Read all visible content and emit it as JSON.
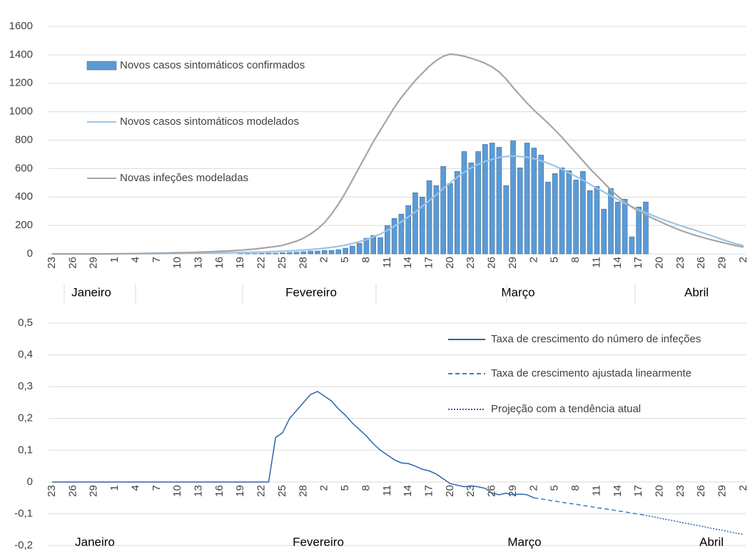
{
  "chart_data": [
    {
      "type": "combo",
      "categories": [
        "23",
        null,
        null,
        "26",
        null,
        null,
        "29",
        null,
        null,
        "1",
        null,
        null,
        "4",
        null,
        null,
        "7",
        null,
        null,
        "10",
        null,
        null,
        "13",
        null,
        null,
        "16",
        null,
        null,
        "19",
        null,
        null,
        "22",
        null,
        null,
        "25",
        null,
        null,
        "28",
        null,
        null,
        "2",
        null,
        null,
        "5",
        null,
        null,
        "8",
        null,
        null,
        "11",
        null,
        null,
        "14",
        null,
        null,
        "17",
        null,
        null,
        "20",
        null,
        null,
        "23",
        null,
        null,
        "26",
        null,
        null,
        "29",
        null,
        null,
        "2",
        null,
        null,
        "5",
        null,
        null,
        "8",
        null,
        null,
        "11",
        null,
        null,
        "14",
        null,
        null,
        "17",
        null,
        null,
        "20",
        null,
        null,
        "23",
        null,
        null,
        "26",
        null,
        null,
        "29",
        null,
        null,
        "2"
      ],
      "month_labels": [
        "Janeiro",
        "Fevereiro",
        "Março",
        "Abril"
      ],
      "ylim": [
        0,
        1600
      ],
      "yticks": [
        0,
        200,
        400,
        600,
        800,
        1000,
        1200,
        1400,
        1600
      ],
      "grid": true,
      "legend": "top-left",
      "series": [
        {
          "name": "Novos casos sintomáticos confirmados",
          "type": "bar",
          "color": "#5b9bd5",
          "values": [
            null,
            null,
            null,
            null,
            null,
            null,
            null,
            null,
            null,
            null,
            null,
            null,
            null,
            null,
            null,
            null,
            null,
            null,
            null,
            null,
            null,
            null,
            null,
            null,
            null,
            null,
            null,
            1,
            2,
            2,
            3,
            5,
            5,
            8,
            10,
            12,
            15,
            20,
            20,
            25,
            25,
            30,
            40,
            55,
            75,
            110,
            130,
            115,
            200,
            250,
            280,
            340,
            430,
            400,
            515,
            480,
            615,
            495,
            580,
            720,
            640,
            720,
            770,
            780,
            750,
            480,
            795,
            605,
            780,
            745,
            695,
            505,
            565,
            605,
            585,
            520,
            580,
            445,
            475,
            315,
            460,
            365,
            385,
            120,
            330,
            365,
            null,
            null,
            null,
            null,
            null,
            null,
            null,
            null,
            null,
            null,
            null,
            null,
            null,
            null
          ]
        },
        {
          "name": "Novos casos sintomáticos modelados",
          "type": "line",
          "color": "#9dc3e6",
          "values": [
            0,
            0,
            0,
            0,
            0,
            0,
            0,
            0,
            0,
            0,
            1,
            1,
            1,
            2,
            2,
            2,
            3,
            3,
            3,
            4,
            4,
            5,
            5,
            6,
            7,
            8,
            9,
            10,
            11,
            12,
            13,
            15,
            17,
            19,
            21,
            24,
            27,
            31,
            35,
            40,
            46,
            53,
            62,
            73,
            86,
            100,
            120,
            140,
            165,
            195,
            225,
            260,
            295,
            335,
            375,
            415,
            460,
            500,
            540,
            575,
            605,
            630,
            650,
            665,
            678,
            685,
            688,
            685,
            680,
            670,
            655,
            638,
            618,
            595,
            570,
            545,
            518,
            490,
            462,
            435,
            408,
            382,
            356,
            332,
            310,
            290,
            270,
            250,
            232,
            215,
            198,
            182,
            168,
            150,
            135,
            118,
            100,
            85,
            70,
            58
          ]
        },
        {
          "name": "Novas infeções modeladas",
          "type": "line",
          "color": "#a5a5a5",
          "values": [
            0,
            0,
            0,
            0,
            0,
            0,
            0,
            0,
            0,
            1,
            1,
            2,
            2,
            3,
            4,
            5,
            6,
            7,
            8,
            9,
            10,
            12,
            14,
            16,
            18,
            20,
            23,
            26,
            30,
            34,
            40,
            46,
            52,
            60,
            75,
            90,
            110,
            140,
            175,
            220,
            280,
            350,
            430,
            520,
            610,
            700,
            790,
            870,
            950,
            1030,
            1100,
            1160,
            1220,
            1270,
            1320,
            1360,
            1390,
            1405,
            1400,
            1390,
            1375,
            1360,
            1340,
            1315,
            1280,
            1230,
            1170,
            1115,
            1060,
            1010,
            965,
            920,
            870,
            820,
            765,
            710,
            655,
            600,
            550,
            500,
            450,
            405,
            365,
            330,
            300,
            275,
            250,
            228,
            205,
            185,
            165,
            148,
            132,
            118,
            104,
            92,
            80,
            68,
            57,
            48
          ]
        }
      ]
    },
    {
      "type": "line",
      "categories": [
        "23",
        null,
        null,
        "26",
        null,
        null,
        "29",
        null,
        null,
        "1",
        null,
        null,
        "4",
        null,
        null,
        "7",
        null,
        null,
        "10",
        null,
        null,
        "13",
        null,
        null,
        "16",
        null,
        null,
        "19",
        null,
        null,
        "22",
        null,
        null,
        "25",
        null,
        null,
        "28",
        null,
        null,
        "2",
        null,
        null,
        "5",
        null,
        null,
        "8",
        null,
        null,
        "11",
        null,
        null,
        "14",
        null,
        null,
        "17",
        null,
        null,
        "20",
        null,
        null,
        "23",
        null,
        null,
        "26",
        null,
        null,
        "29",
        null,
        null,
        "2",
        null,
        null,
        "5",
        null,
        null,
        "8",
        null,
        null,
        "11",
        null,
        null,
        "14",
        null,
        null,
        "17",
        null,
        null,
        "20",
        null,
        null,
        "23",
        null,
        null,
        "26",
        null,
        null,
        "29",
        null,
        null,
        "2"
      ],
      "month_labels": [
        "Janeiro",
        "Fevereiro",
        "Março",
        "Abril"
      ],
      "ylim": [
        -0.2,
        0.5
      ],
      "yticks": [
        {
          "value": -0.2,
          "label": "-0,2"
        },
        {
          "value": -0.1,
          "label": "-0,1"
        },
        0,
        {
          "value": 0.1,
          "label": "0,1"
        },
        {
          "value": 0.2,
          "label": "0,2"
        },
        {
          "value": 0.3,
          "label": "0,3"
        },
        {
          "value": 0.4,
          "label": "0,4"
        },
        {
          "value": 0.5,
          "label": "0,5"
        }
      ],
      "grid": true,
      "legend": "top-right",
      "series": [
        {
          "name": "Taxa de crescimento do número de infeções",
          "style": "solid",
          "color": "#2f64a8",
          "values": [
            0,
            0,
            0,
            0,
            0,
            0,
            0,
            0,
            0,
            0,
            0,
            0,
            0,
            0,
            0,
            0,
            0,
            0,
            0,
            0,
            0,
            0,
            0,
            0,
            0,
            0,
            0,
            0,
            0,
            0,
            0,
            0,
            0.14,
            0.155,
            0.2,
            0.225,
            0.25,
            0.275,
            0.285,
            0.27,
            0.255,
            0.23,
            0.21,
            0.185,
            0.165,
            0.145,
            0.12,
            0.1,
            0.085,
            0.07,
            0.06,
            0.058,
            0.05,
            0.04,
            0.035,
            0.025,
            0.01,
            -0.005,
            -0.01,
            -0.015,
            -0.012,
            -0.015,
            -0.02,
            -0.035,
            -0.04,
            -0.035,
            -0.04,
            -0.038,
            -0.04,
            -0.05,
            null,
            null,
            null,
            null,
            null,
            null,
            null,
            null,
            null,
            null,
            null,
            null,
            null,
            null,
            null,
            null,
            null,
            null,
            null,
            null,
            null,
            null,
            null,
            null,
            null,
            null,
            null,
            null,
            null,
            null
          ]
        },
        {
          "name": "Taxa de crescimento ajustada linearmente",
          "style": "dashed",
          "color": "#3a7dc9",
          "values": [
            null,
            null,
            null,
            null,
            null,
            null,
            null,
            null,
            null,
            null,
            null,
            null,
            null,
            null,
            null,
            null,
            null,
            null,
            null,
            null,
            null,
            null,
            null,
            null,
            null,
            null,
            null,
            null,
            null,
            null,
            null,
            null,
            null,
            null,
            null,
            null,
            null,
            null,
            null,
            null,
            null,
            null,
            null,
            null,
            null,
            null,
            null,
            null,
            null,
            null,
            null,
            null,
            null,
            null,
            null,
            null,
            null,
            null,
            null,
            null,
            null,
            null,
            null,
            null,
            null,
            null,
            null,
            null,
            null,
            -0.05,
            -0.053,
            -0.057,
            -0.06,
            -0.064,
            -0.067,
            -0.07,
            -0.074,
            -0.077,
            -0.081,
            -0.084,
            -0.087,
            -0.091,
            -0.094,
            -0.098,
            -0.101,
            -0.105,
            null,
            null,
            null,
            null,
            null,
            null,
            null,
            null,
            null,
            null,
            null,
            null,
            null,
            null
          ]
        },
        {
          "name": "Projeção com a tendência atual",
          "style": "dotted",
          "color": "#2f64a8",
          "values": [
            null,
            null,
            null,
            null,
            null,
            null,
            null,
            null,
            null,
            null,
            null,
            null,
            null,
            null,
            null,
            null,
            null,
            null,
            null,
            null,
            null,
            null,
            null,
            null,
            null,
            null,
            null,
            null,
            null,
            null,
            null,
            null,
            null,
            null,
            null,
            null,
            null,
            null,
            null,
            null,
            null,
            null,
            null,
            null,
            null,
            null,
            null,
            null,
            null,
            null,
            null,
            null,
            null,
            null,
            null,
            null,
            null,
            null,
            null,
            null,
            null,
            null,
            null,
            null,
            null,
            null,
            null,
            null,
            null,
            null,
            null,
            null,
            null,
            null,
            null,
            null,
            null,
            null,
            null,
            null,
            null,
            null,
            null,
            null,
            null,
            -0.105,
            -0.109,
            -0.114,
            -0.118,
            -0.122,
            -0.127,
            -0.131,
            -0.135,
            -0.139,
            -0.144,
            -0.148,
            -0.152,
            -0.157,
            -0.161,
            -0.165
          ]
        }
      ]
    }
  ]
}
